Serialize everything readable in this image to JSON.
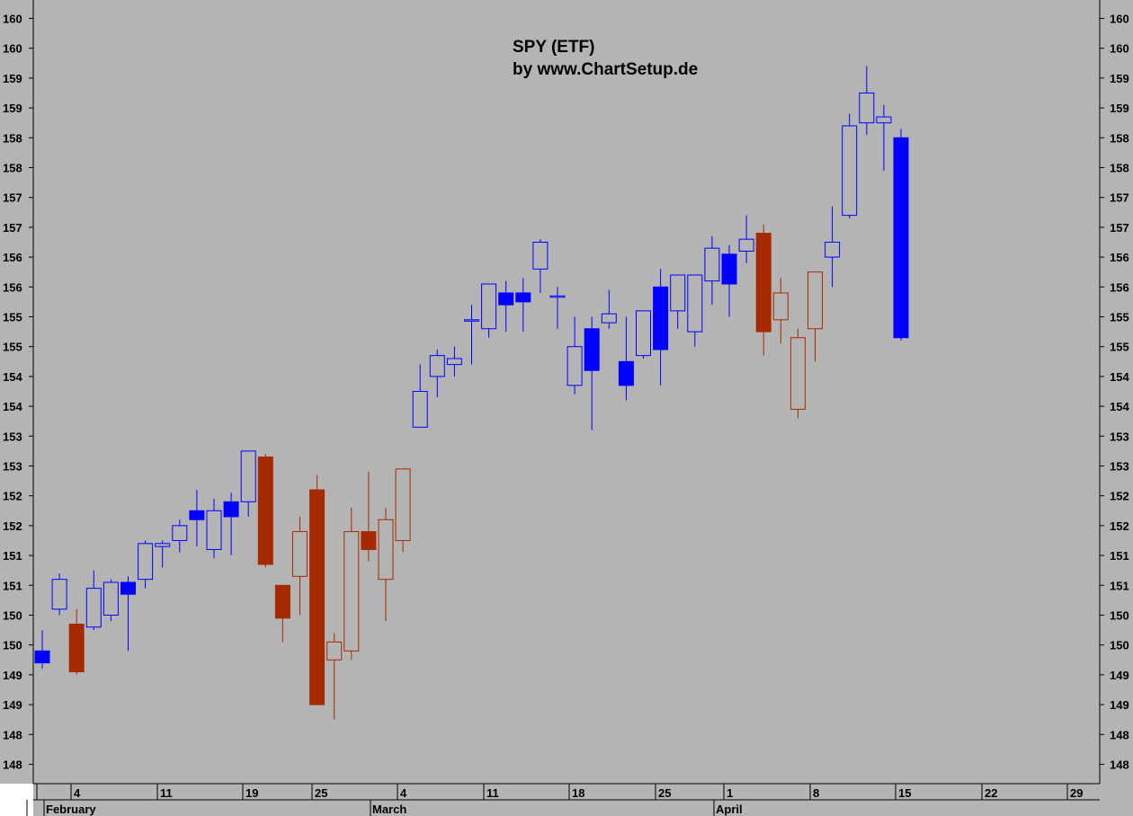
{
  "chart_data": {
    "type": "candlestick",
    "title": "SPY (ETF)",
    "subtitle": "by www.ChartSetup.de",
    "colors": {
      "background": "#b4b4b4",
      "up_hollow": "#0000ff",
      "down_filled_blue": "#0000ff",
      "down_filled_red": "#a52a00",
      "up_hollow_red": "#a52a00"
    },
    "ylim": [
      147.75,
      160.25
    ],
    "y_ticks": [
      {
        "value": 148.0,
        "label": "148"
      },
      {
        "value": 148.5,
        "label": "148"
      },
      {
        "value": 149.0,
        "label": "149"
      },
      {
        "value": 149.5,
        "label": "149"
      },
      {
        "value": 150.0,
        "label": "150"
      },
      {
        "value": 150.5,
        "label": "150"
      },
      {
        "value": 151.0,
        "label": "151"
      },
      {
        "value": 151.5,
        "label": "151"
      },
      {
        "value": 152.0,
        "label": "152"
      },
      {
        "value": 152.5,
        "label": "152"
      },
      {
        "value": 153.0,
        "label": "153"
      },
      {
        "value": 153.5,
        "label": "153"
      },
      {
        "value": 154.0,
        "label": "154"
      },
      {
        "value": 154.5,
        "label": "154"
      },
      {
        "value": 155.0,
        "label": "155"
      },
      {
        "value": 155.5,
        "label": "155"
      },
      {
        "value": 156.0,
        "label": "156"
      },
      {
        "value": 156.5,
        "label": "156"
      },
      {
        "value": 157.0,
        "label": "157"
      },
      {
        "value": 157.5,
        "label": "157"
      },
      {
        "value": 158.0,
        "label": "158"
      },
      {
        "value": 158.5,
        "label": "158"
      },
      {
        "value": 159.0,
        "label": "159"
      },
      {
        "value": 159.5,
        "label": "159"
      },
      {
        "value": 160.0,
        "label": "160"
      },
      {
        "value": 160.5,
        "label": "160"
      }
    ],
    "x_ticks": [
      {
        "date": "2013-01-31",
        "label": ""
      },
      {
        "date": "2013-02-04",
        "label": "4"
      },
      {
        "date": "2013-02-11",
        "label": "11"
      },
      {
        "date": "2013-02-19",
        "label": "19"
      },
      {
        "date": "2013-02-25",
        "label": "25"
      },
      {
        "date": "2013-03-04",
        "label": "4"
      },
      {
        "date": "2013-03-11",
        "label": "11"
      },
      {
        "date": "2013-03-18",
        "label": "18"
      },
      {
        "date": "2013-03-25",
        "label": "25"
      },
      {
        "date": "2013-04-01",
        "label": "1"
      },
      {
        "date": "2013-04-08",
        "label": "8"
      },
      {
        "date": "2013-04-15",
        "label": "15"
      },
      {
        "date": "2013-04-22",
        "label": "22"
      },
      {
        "date": "2013-04-29",
        "label": "29"
      }
    ],
    "months": [
      {
        "date": "2013-01-31",
        "label": ""
      },
      {
        "date": "2013-02-01",
        "label": "February"
      },
      {
        "date": "2013-03-01",
        "label": "March"
      },
      {
        "date": "2013-04-01",
        "label": "April"
      }
    ],
    "candles": [
      {
        "date": "2013-01-31",
        "open": 149.9,
        "high": 150.25,
        "low": 149.6,
        "close": 149.7,
        "color": "blue"
      },
      {
        "date": "2013-02-01",
        "open": 150.6,
        "high": 151.2,
        "low": 150.5,
        "close": 151.1,
        "color": "blue"
      },
      {
        "date": "2013-02-04",
        "open": 150.35,
        "high": 150.6,
        "low": 149.5,
        "close": 149.55,
        "color": "red"
      },
      {
        "date": "2013-02-05",
        "open": 150.3,
        "high": 151.25,
        "low": 150.25,
        "close": 150.95,
        "color": "blue"
      },
      {
        "date": "2013-02-06",
        "open": 150.5,
        "high": 151.1,
        "low": 150.4,
        "close": 151.05,
        "color": "blue"
      },
      {
        "date": "2013-02-07",
        "open": 151.05,
        "high": 151.15,
        "low": 149.9,
        "close": 150.85,
        "color": "blue"
      },
      {
        "date": "2013-02-08",
        "open": 151.1,
        "high": 151.75,
        "low": 150.95,
        "close": 151.7,
        "color": "blue"
      },
      {
        "date": "2013-02-11",
        "open": 151.65,
        "high": 151.75,
        "low": 151.3,
        "close": 151.7,
        "color": "blue"
      },
      {
        "date": "2013-02-12",
        "open": 151.75,
        "high": 152.1,
        "low": 151.55,
        "close": 152.0,
        "color": "blue"
      },
      {
        "date": "2013-02-13",
        "open": 152.25,
        "high": 152.6,
        "low": 151.65,
        "close": 152.1,
        "color": "blue"
      },
      {
        "date": "2013-02-14",
        "open": 151.6,
        "high": 152.45,
        "low": 151.45,
        "close": 152.25,
        "color": "blue"
      },
      {
        "date": "2013-02-15",
        "open": 152.4,
        "high": 152.55,
        "low": 151.5,
        "close": 152.15,
        "color": "blue"
      },
      {
        "date": "2013-02-19",
        "open": 152.4,
        "high": 153.25,
        "low": 152.15,
        "close": 153.25,
        "color": "blue"
      },
      {
        "date": "2013-02-20",
        "open": 153.15,
        "high": 153.2,
        "low": 151.3,
        "close": 151.35,
        "color": "red"
      },
      {
        "date": "2013-02-21",
        "open": 151.0,
        "high": 151.0,
        "low": 150.05,
        "close": 150.45,
        "color": "red"
      },
      {
        "date": "2013-02-22",
        "open": 151.15,
        "high": 152.15,
        "low": 150.5,
        "close": 151.9,
        "color": "red"
      },
      {
        "date": "2013-02-25",
        "open": 152.6,
        "high": 152.85,
        "low": 149.0,
        "close": 149.0,
        "color": "red"
      },
      {
        "date": "2013-02-26",
        "open": 149.75,
        "high": 150.2,
        "low": 148.75,
        "close": 150.05,
        "color": "red"
      },
      {
        "date": "2013-02-27",
        "open": 149.9,
        "high": 152.3,
        "low": 149.75,
        "close": 151.9,
        "color": "red"
      },
      {
        "date": "2013-02-28",
        "open": 151.9,
        "high": 152.9,
        "low": 151.4,
        "close": 151.6,
        "color": "red"
      },
      {
        "date": "2013-03-01",
        "open": 151.1,
        "high": 152.3,
        "low": 150.4,
        "close": 152.1,
        "color": "red"
      },
      {
        "date": "2013-03-04",
        "open": 151.75,
        "high": 152.95,
        "low": 151.55,
        "close": 152.95,
        "color": "red"
      },
      {
        "date": "2013-03-05",
        "open": 153.65,
        "high": 154.7,
        "low": 153.65,
        "close": 154.25,
        "color": "blue"
      },
      {
        "date": "2013-03-06",
        "open": 154.5,
        "high": 154.95,
        "low": 154.15,
        "close": 154.85,
        "color": "blue"
      },
      {
        "date": "2013-03-07",
        "open": 154.7,
        "high": 155.0,
        "low": 154.5,
        "close": 154.8,
        "color": "blue"
      },
      {
        "date": "2013-03-08",
        "open": 155.45,
        "high": 155.7,
        "low": 154.7,
        "close": 155.45,
        "color": "blue"
      },
      {
        "date": "2013-03-11",
        "open": 155.3,
        "high": 156.05,
        "low": 155.15,
        "close": 156.05,
        "color": "blue"
      },
      {
        "date": "2013-03-12",
        "open": 155.9,
        "high": 156.1,
        "low": 155.25,
        "close": 155.7,
        "color": "blue"
      },
      {
        "date": "2013-03-13",
        "open": 155.9,
        "high": 156.15,
        "low": 155.25,
        "close": 155.75,
        "color": "blue"
      },
      {
        "date": "2013-03-14",
        "open": 156.3,
        "high": 156.8,
        "low": 155.9,
        "close": 156.75,
        "color": "blue"
      },
      {
        "date": "2013-03-15",
        "open": 155.85,
        "high": 156.0,
        "low": 155.3,
        "close": 155.85,
        "color": "blue"
      },
      {
        "date": "2013-03-18",
        "open": 154.35,
        "high": 155.5,
        "low": 154.2,
        "close": 155.0,
        "color": "blue"
      },
      {
        "date": "2013-03-19",
        "open": 155.3,
        "high": 155.5,
        "low": 153.6,
        "close": 154.6,
        "color": "blue"
      },
      {
        "date": "2013-03-20",
        "open": 155.4,
        "high": 155.95,
        "low": 155.3,
        "close": 155.55,
        "color": "blue"
      },
      {
        "date": "2013-03-21",
        "open": 154.75,
        "high": 155.5,
        "low": 154.1,
        "close": 154.35,
        "color": "blue"
      },
      {
        "date": "2013-03-22",
        "open": 154.85,
        "high": 155.6,
        "low": 154.8,
        "close": 155.6,
        "color": "blue"
      },
      {
        "date": "2013-03-25",
        "open": 156.0,
        "high": 156.3,
        "low": 154.35,
        "close": 154.95,
        "color": "blue"
      },
      {
        "date": "2013-03-26",
        "open": 155.6,
        "high": 156.2,
        "low": 155.3,
        "close": 156.2,
        "color": "blue"
      },
      {
        "date": "2013-03-27",
        "open": 155.25,
        "high": 156.2,
        "low": 155.0,
        "close": 156.2,
        "color": "blue"
      },
      {
        "date": "2013-03-28",
        "open": 156.1,
        "high": 156.85,
        "low": 155.7,
        "close": 156.65,
        "color": "blue"
      },
      {
        "date": "2013-04-01",
        "open": 156.55,
        "high": 156.7,
        "low": 155.5,
        "close": 156.05,
        "color": "blue"
      },
      {
        "date": "2013-04-02",
        "open": 156.6,
        "high": 157.2,
        "low": 156.4,
        "close": 156.8,
        "color": "blue"
      },
      {
        "date": "2013-04-03",
        "open": 156.9,
        "high": 157.05,
        "low": 154.85,
        "close": 155.25,
        "color": "red"
      },
      {
        "date": "2013-04-04",
        "open": 155.45,
        "high": 156.15,
        "low": 155.05,
        "close": 155.9,
        "color": "red"
      },
      {
        "date": "2013-04-05",
        "open": 153.95,
        "high": 155.3,
        "low": 153.8,
        "close": 155.15,
        "color": "red"
      },
      {
        "date": "2013-04-08",
        "open": 155.3,
        "high": 156.25,
        "low": 154.75,
        "close": 156.25,
        "color": "red"
      },
      {
        "date": "2013-04-09",
        "open": 156.5,
        "high": 157.35,
        "low": 156.0,
        "close": 156.75,
        "color": "blue"
      },
      {
        "date": "2013-04-10",
        "open": 157.2,
        "high": 158.9,
        "low": 157.15,
        "close": 158.7,
        "color": "blue"
      },
      {
        "date": "2013-04-11",
        "open": 158.75,
        "high": 159.7,
        "low": 158.55,
        "close": 159.25,
        "color": "blue"
      },
      {
        "date": "2013-04-12",
        "open": 158.75,
        "high": 159.05,
        "low": 157.95,
        "close": 158.85,
        "color": "blue"
      },
      {
        "date": "2013-04-15",
        "open": 158.5,
        "high": 158.65,
        "low": 155.1,
        "close": 155.15,
        "color": "blue"
      }
    ]
  }
}
